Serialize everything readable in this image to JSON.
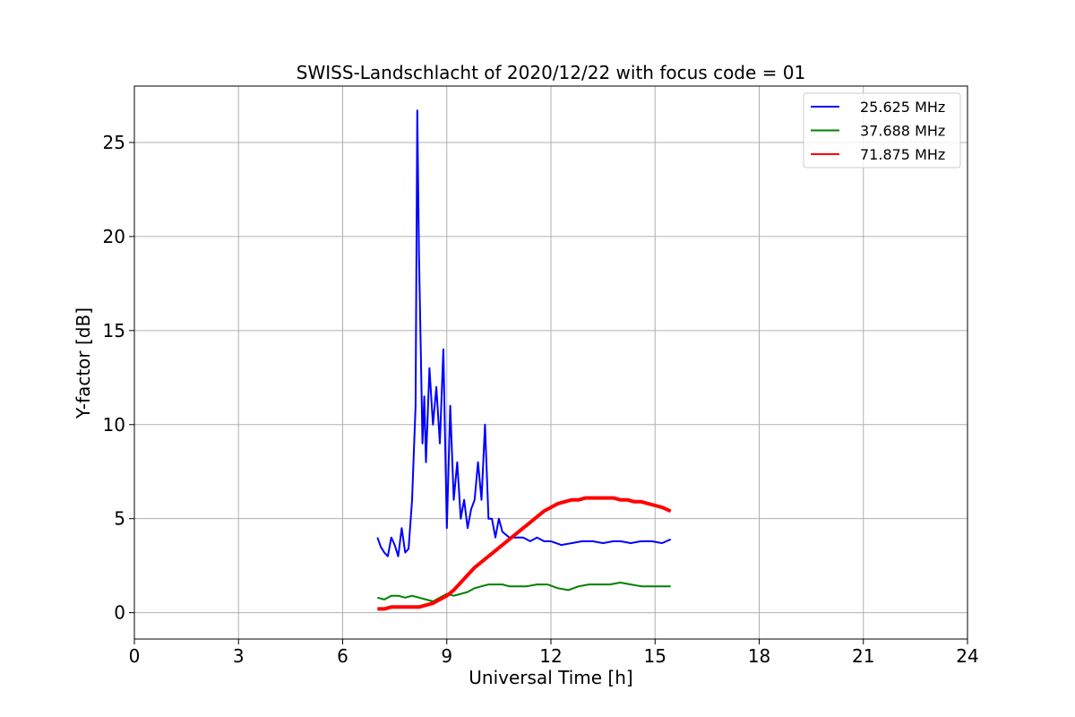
{
  "chart_data": {
    "type": "line",
    "title": "SWISS-Landschlacht of 2020/12/22 with focus code = 01",
    "xlabel": "Universal Time [h]",
    "ylabel": "Y-factor [dB]",
    "xlim": [
      0,
      24
    ],
    "ylim": [
      -1.4,
      28
    ],
    "xticks": [
      0,
      3,
      6,
      9,
      12,
      15,
      18,
      21,
      24
    ],
    "xtick_labels": [
      "0",
      "3",
      "6",
      "9",
      "12",
      "15",
      "18",
      "21",
      "24"
    ],
    "yticks": [
      0,
      5,
      10,
      15,
      20,
      25
    ],
    "ytick_labels": [
      "0",
      "5",
      "10",
      "15",
      "20",
      "25"
    ],
    "grid": true,
    "legend_position": "top-right",
    "series": [
      {
        "name": "25.625 MHz",
        "color": "#0000ff",
        "x": [
          7.0,
          7.1,
          7.2,
          7.3,
          7.4,
          7.5,
          7.6,
          7.7,
          7.8,
          7.9,
          8.0,
          8.1,
          8.15,
          8.2,
          8.25,
          8.3,
          8.35,
          8.4,
          8.5,
          8.6,
          8.7,
          8.8,
          8.9,
          9.0,
          9.1,
          9.2,
          9.3,
          9.4,
          9.5,
          9.6,
          9.7,
          9.8,
          9.9,
          10.0,
          10.1,
          10.2,
          10.3,
          10.4,
          10.5,
          10.6,
          10.8,
          11.0,
          11.2,
          11.4,
          11.6,
          11.8,
          12.0,
          12.3,
          12.6,
          12.9,
          13.2,
          13.5,
          13.8,
          14.0,
          14.3,
          14.6,
          14.9,
          15.2,
          15.45
        ],
        "y": [
          4.0,
          3.5,
          3.2,
          3.0,
          4.0,
          3.6,
          3.0,
          4.5,
          3.2,
          3.4,
          6.0,
          11.0,
          26.7,
          19.0,
          14.0,
          9.0,
          11.5,
          8.0,
          13.0,
          10.0,
          12.0,
          9.0,
          14.0,
          4.5,
          11.0,
          6.0,
          8.0,
          5.0,
          6.0,
          4.5,
          5.5,
          6.0,
          8.0,
          6.0,
          10.0,
          5.0,
          5.0,
          4.0,
          5.0,
          4.3,
          4.0,
          4.0,
          4.0,
          3.8,
          4.0,
          3.8,
          3.8,
          3.6,
          3.7,
          3.8,
          3.8,
          3.7,
          3.8,
          3.8,
          3.7,
          3.8,
          3.8,
          3.7,
          3.9
        ]
      },
      {
        "name": "37.688 MHz",
        "color": "#008000",
        "x": [
          7.0,
          7.2,
          7.4,
          7.6,
          7.8,
          8.0,
          8.2,
          8.4,
          8.6,
          8.8,
          9.0,
          9.2,
          9.4,
          9.6,
          9.8,
          10.0,
          10.2,
          10.4,
          10.6,
          10.8,
          11.0,
          11.3,
          11.6,
          11.9,
          12.2,
          12.5,
          12.8,
          13.1,
          13.4,
          13.7,
          14.0,
          14.3,
          14.6,
          14.9,
          15.2,
          15.45
        ],
        "y": [
          0.8,
          0.7,
          0.9,
          0.9,
          0.8,
          0.9,
          0.8,
          0.7,
          0.6,
          0.8,
          1.0,
          0.9,
          1.0,
          1.1,
          1.3,
          1.4,
          1.5,
          1.5,
          1.5,
          1.4,
          1.4,
          1.4,
          1.5,
          1.5,
          1.3,
          1.2,
          1.4,
          1.5,
          1.5,
          1.5,
          1.6,
          1.5,
          1.4,
          1.4,
          1.4,
          1.4
        ]
      },
      {
        "name": "71.875 MHz",
        "color": "#ff0000",
        "x": [
          7.0,
          7.2,
          7.4,
          7.6,
          7.8,
          8.0,
          8.2,
          8.4,
          8.6,
          8.8,
          9.0,
          9.2,
          9.4,
          9.6,
          9.8,
          10.0,
          10.2,
          10.4,
          10.6,
          10.8,
          11.0,
          11.2,
          11.4,
          11.6,
          11.8,
          12.0,
          12.2,
          12.4,
          12.6,
          12.8,
          13.0,
          13.2,
          13.4,
          13.6,
          13.8,
          14.0,
          14.2,
          14.4,
          14.6,
          14.8,
          15.0,
          15.2,
          15.45
        ],
        "y": [
          0.2,
          0.2,
          0.3,
          0.3,
          0.3,
          0.3,
          0.3,
          0.4,
          0.5,
          0.7,
          0.9,
          1.2,
          1.6,
          2.0,
          2.4,
          2.7,
          3.0,
          3.3,
          3.6,
          3.9,
          4.2,
          4.5,
          4.8,
          5.1,
          5.4,
          5.6,
          5.8,
          5.9,
          6.0,
          6.0,
          6.1,
          6.1,
          6.1,
          6.1,
          6.1,
          6.0,
          6.0,
          5.9,
          5.9,
          5.8,
          5.7,
          5.6,
          5.4
        ]
      }
    ]
  }
}
